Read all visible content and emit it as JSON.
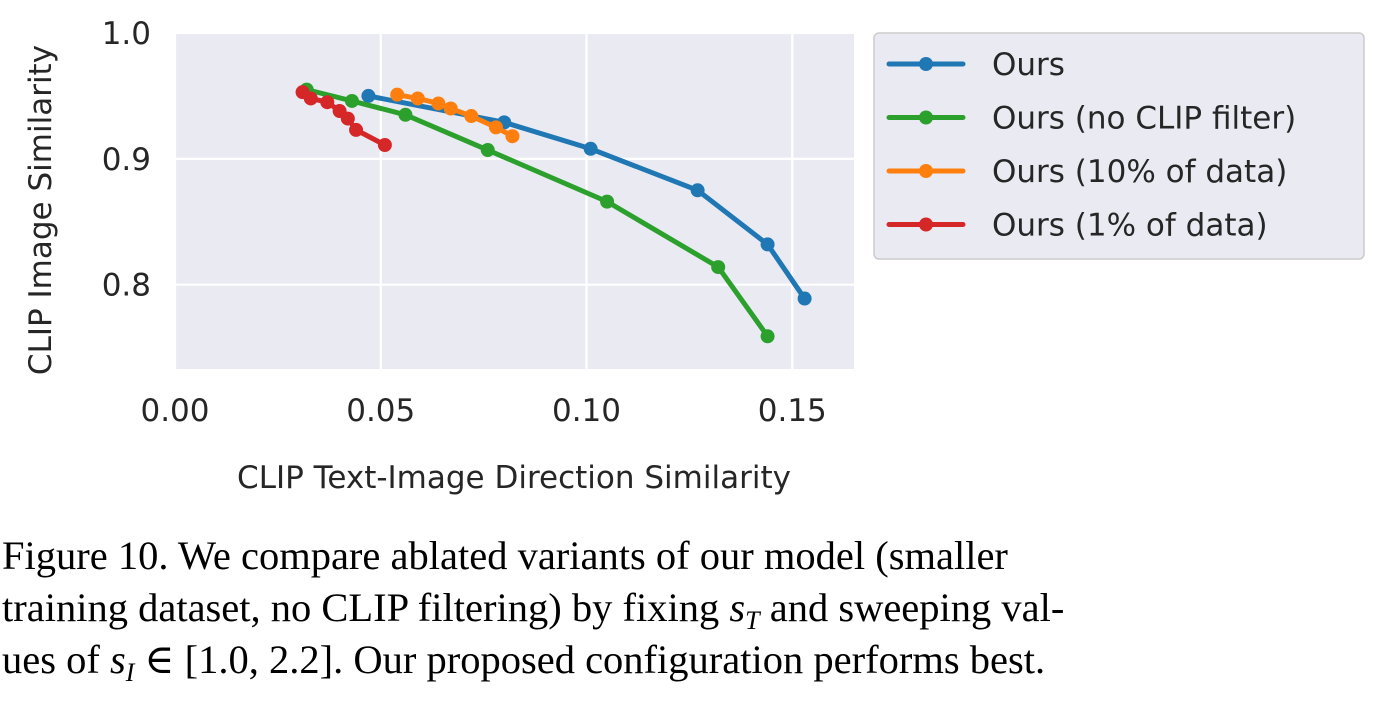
{
  "chart_data": {
    "type": "line",
    "xlabel": "CLIP Text-Image Direction Similarity",
    "ylabel": "CLIP Image Similarity",
    "xlim": [
      0.0,
      0.165
    ],
    "ylim": [
      0.733,
      1.0
    ],
    "xticks": [
      0.0,
      0.05,
      0.1,
      0.15
    ],
    "xtick_labels": [
      "0.00",
      "0.05",
      "0.10",
      "0.15"
    ],
    "yticks": [
      0.8,
      0.9,
      1.0
    ],
    "ytick_labels": [
      "0.8",
      "0.9",
      "1.0"
    ],
    "grid": true,
    "legend_position": "right",
    "series": [
      {
        "name": "Ours",
        "color": "#1f77b4",
        "x": [
          0.047,
          0.08,
          0.101,
          0.127,
          0.144,
          0.153
        ],
        "y": [
          0.95,
          0.929,
          0.908,
          0.875,
          0.832,
          0.789
        ]
      },
      {
        "name": "Ours (no CLIP filter)",
        "color": "#2ca02c",
        "x": [
          0.032,
          0.043,
          0.056,
          0.076,
          0.105,
          0.132,
          0.144
        ],
        "y": [
          0.955,
          0.946,
          0.935,
          0.907,
          0.866,
          0.814,
          0.759
        ]
      },
      {
        "name": "Ours (10% of data)",
        "color": "#ff7f0e",
        "x": [
          0.054,
          0.059,
          0.064,
          0.067,
          0.072,
          0.078,
          0.082
        ],
        "y": [
          0.951,
          0.948,
          0.944,
          0.94,
          0.934,
          0.925,
          0.918
        ]
      },
      {
        "name": "Ours (1% of data)",
        "color": "#d62728",
        "x": [
          0.031,
          0.033,
          0.037,
          0.04,
          0.042,
          0.044,
          0.051
        ],
        "y": [
          0.953,
          0.948,
          0.945,
          0.938,
          0.932,
          0.923,
          0.911
        ]
      }
    ]
  },
  "caption": {
    "line1": "Figure 10.  We compare ablated variants of our model (smaller",
    "line2_a": "training dataset, no CLIP filtering) by fixing ",
    "s_var": "s",
    "sub_T": "T",
    "line2_b": " and sweeping val-",
    "line3_a": "ues of ",
    "sub_I": "I",
    "line3_b": " ∈ [1.0, 2.2]. Our proposed configuration performs best."
  }
}
